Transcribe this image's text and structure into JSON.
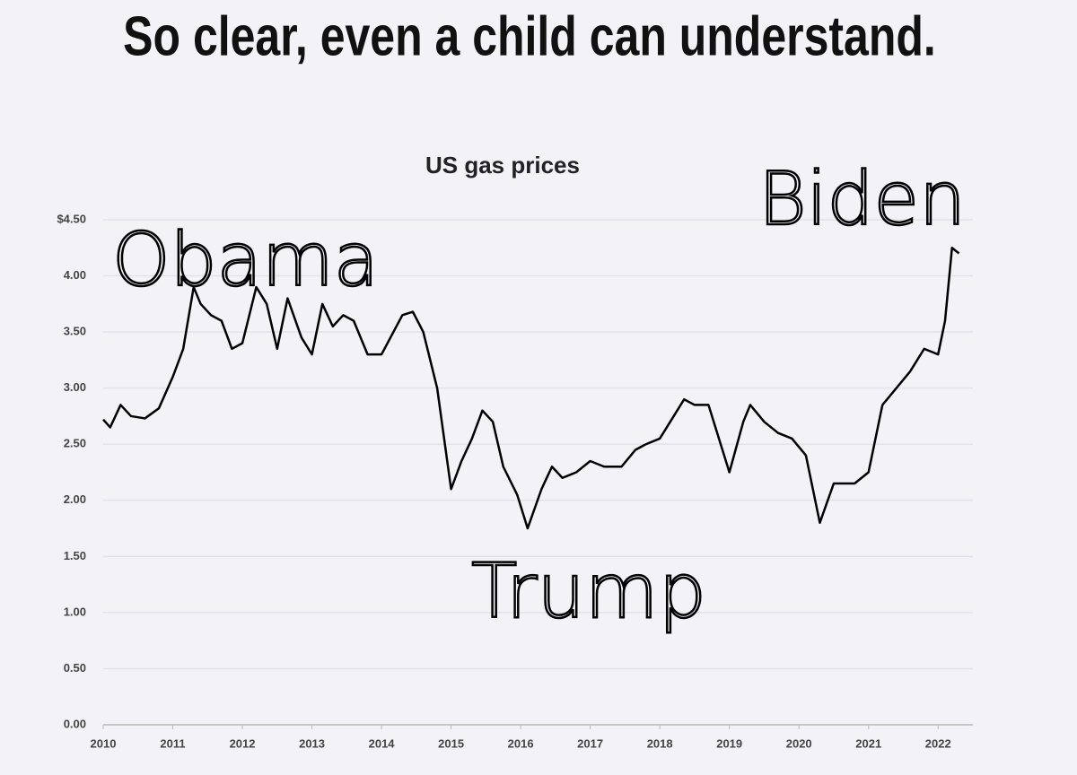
{
  "header": "So clear, even a child can understand.",
  "chart_data": {
    "type": "line",
    "title": "US gas prices",
    "annotations": [
      "Obama",
      "Trump",
      "Biden"
    ],
    "x": [
      2010.0,
      2010.1,
      2010.25,
      2010.4,
      2010.6,
      2010.8,
      2011.0,
      2011.15,
      2011.3,
      2011.4,
      2011.55,
      2011.7,
      2011.85,
      2012.0,
      2012.2,
      2012.35,
      2012.5,
      2012.65,
      2012.85,
      2013.0,
      2013.15,
      2013.3,
      2013.45,
      2013.6,
      2013.8,
      2014.0,
      2014.3,
      2014.45,
      2014.6,
      2014.8,
      2015.0,
      2015.15,
      2015.3,
      2015.45,
      2015.6,
      2015.75,
      2015.95,
      2016.1,
      2016.3,
      2016.45,
      2016.6,
      2016.8,
      2017.0,
      2017.2,
      2017.45,
      2017.65,
      2017.8,
      2018.0,
      2018.2,
      2018.35,
      2018.5,
      2018.7,
      2018.85,
      2019.0,
      2019.2,
      2019.3,
      2019.5,
      2019.7,
      2019.9,
      2020.1,
      2020.3,
      2020.5,
      2020.8,
      2021.0,
      2021.2,
      2021.4,
      2021.6,
      2021.8,
      2022.0,
      2022.1,
      2022.2,
      2022.3
    ],
    "series": [
      {
        "color": "#000000",
        "values": [
          2.72,
          2.65,
          2.85,
          2.75,
          2.73,
          2.82,
          3.1,
          3.35,
          3.9,
          3.75,
          3.65,
          3.6,
          3.35,
          3.4,
          3.9,
          3.75,
          3.35,
          3.8,
          3.45,
          3.3,
          3.75,
          3.55,
          3.65,
          3.6,
          3.3,
          3.3,
          3.65,
          3.68,
          3.5,
          3.0,
          2.1,
          2.35,
          2.55,
          2.8,
          2.7,
          2.3,
          2.05,
          1.75,
          2.1,
          2.3,
          2.2,
          2.25,
          2.35,
          2.3,
          2.3,
          2.45,
          2.5,
          2.55,
          2.75,
          2.9,
          2.85,
          2.85,
          2.55,
          2.25,
          2.7,
          2.85,
          2.7,
          2.6,
          2.55,
          2.4,
          1.8,
          2.15,
          2.15,
          2.25,
          2.85,
          3.0,
          3.15,
          3.35,
          3.3,
          3.6,
          4.25,
          4.2
        ]
      }
    ],
    "xlim": [
      2010,
      2022.5
    ],
    "xticks": [
      2010,
      2011,
      2012,
      2013,
      2014,
      2015,
      2016,
      2017,
      2018,
      2019,
      2020,
      2021,
      2022
    ],
    "ylim": [
      0,
      4.5
    ],
    "yticks": [
      {
        "value": 0,
        "label": "0.00"
      },
      {
        "value": 0.5,
        "label": "0.50"
      },
      {
        "value": 1,
        "label": "1.00"
      },
      {
        "value": 1.5,
        "label": "1.50"
      },
      {
        "value": 2,
        "label": "2.00"
      },
      {
        "value": 2.5,
        "label": "2.50"
      },
      {
        "value": 3,
        "label": "3.00"
      },
      {
        "value": 3.5,
        "label": "3.50"
      },
      {
        "value": 4,
        "label": "4.00"
      },
      {
        "value": 4.5,
        "label": "$4.50"
      }
    ],
    "grid": true
  }
}
